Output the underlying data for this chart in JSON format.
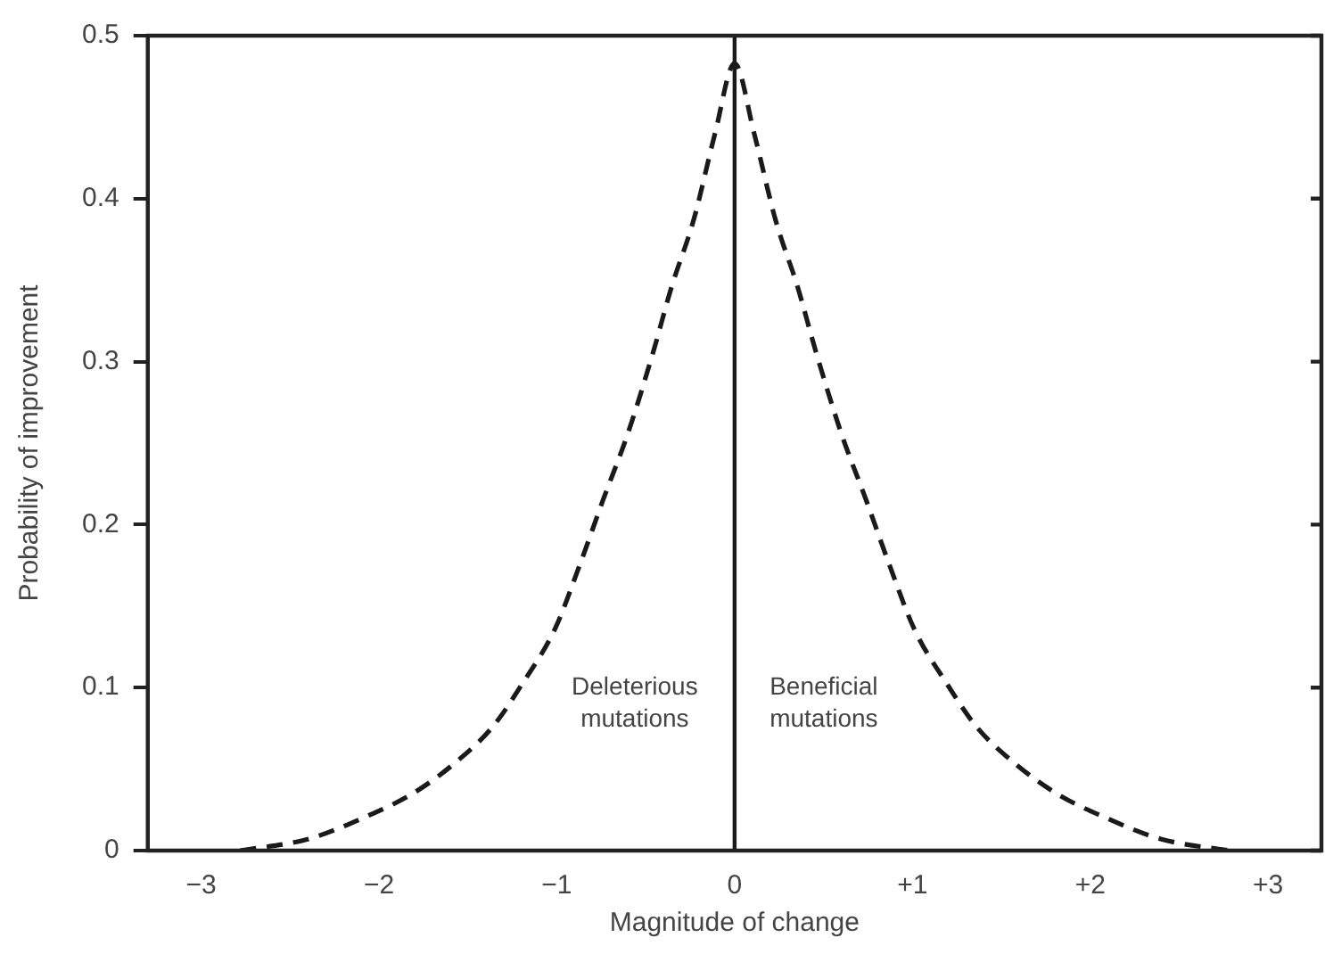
{
  "chart_data": {
    "type": "line",
    "xlabel": "Magnitude of change",
    "ylabel": "Probability of improvement",
    "xlim": [
      -3.3,
      3.3
    ],
    "ylim": [
      0,
      0.5
    ],
    "xticks": [
      {
        "value": -3,
        "label": "−3"
      },
      {
        "value": -2,
        "label": "−2"
      },
      {
        "value": -1,
        "label": "−1"
      },
      0,
      {
        "value": 1,
        "label": "+1"
      },
      {
        "value": 2,
        "label": "+2"
      },
      {
        "value": 3,
        "label": "+3"
      }
    ],
    "yticks": [
      0,
      0.1,
      0.2,
      0.3,
      0.4,
      0.5
    ],
    "grid": false,
    "legend": false,
    "marker": "none",
    "line_style": "dashed",
    "series": [
      {
        "color": "#1a1a1a",
        "x": [
          -2.78,
          -2.4,
          -2.09,
          -1.81,
          -1.57,
          -1.36,
          -1.19,
          -1.01,
          -0.875,
          -0.74,
          -0.6,
          -0.46,
          -0.354,
          -0.23,
          -0.11,
          0,
          0.11,
          0.23,
          0.354,
          0.46,
          0.6,
          0.74,
          0.875,
          1.01,
          1.19,
          1.36,
          1.57,
          1.81,
          2.09,
          2.4,
          2.78
        ],
        "values": [
          0,
          0.007,
          0.02,
          0.035,
          0.054,
          0.076,
          0.103,
          0.136,
          0.174,
          0.215,
          0.256,
          0.305,
          0.346,
          0.387,
          0.44,
          0.483,
          0.44,
          0.387,
          0.346,
          0.305,
          0.256,
          0.215,
          0.174,
          0.136,
          0.103,
          0.076,
          0.054,
          0.035,
          0.02,
          0.007,
          0
        ]
      }
    ],
    "ref_lines": [
      {
        "axis": "x",
        "value": 0,
        "color": "#1a1a1a"
      }
    ],
    "annotations": [
      "Deleterious mutations",
      "Beneficial mutations"
    ]
  }
}
